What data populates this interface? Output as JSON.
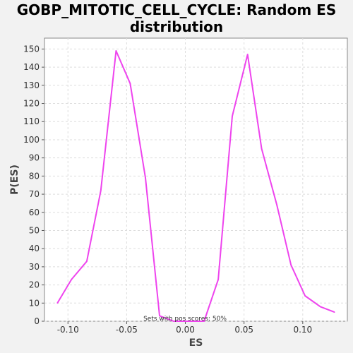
{
  "chart_data": {
    "type": "line",
    "title_line1": "GOBP_MITOTIC_CELL_CYCLE: Random ES",
    "title_line2": "distribution",
    "xlabel": "ES",
    "ylabel": "P(ES)",
    "xlim": [
      -0.12,
      0.138
    ],
    "ylim": [
      0,
      156
    ],
    "xticks": [
      -0.1,
      -0.05,
      0.0,
      0.05,
      0.1
    ],
    "xtick_labels": [
      "-0.10",
      "-0.05",
      "0.00",
      "0.05",
      "0.10"
    ],
    "yticks": [
      0,
      10,
      20,
      30,
      40,
      50,
      60,
      70,
      80,
      90,
      100,
      110,
      120,
      130,
      140,
      150
    ],
    "ytick_labels": [
      "0",
      "10",
      "20",
      "30",
      "40",
      "50",
      "60",
      "70",
      "80",
      "90",
      "100",
      "110",
      "120",
      "130",
      "140",
      "150"
    ],
    "grid": true,
    "series_color": "#ee44ee",
    "series": [
      {
        "x": [
          -0.109,
          -0.097,
          -0.084,
          -0.072,
          -0.059,
          -0.047,
          -0.034,
          -0.022,
          -0.01,
          0.003,
          0.016,
          0.028,
          0.04,
          0.053,
          0.065,
          0.078,
          0.09,
          0.102,
          0.115,
          0.127
        ],
        "values": [
          10,
          23,
          33,
          72,
          149,
          131,
          79,
          3,
          0,
          0,
          0,
          23,
          113,
          147,
          95,
          64,
          31,
          14,
          8,
          5
        ]
      }
    ],
    "annotation": "Sets with pos scores: 50%"
  }
}
